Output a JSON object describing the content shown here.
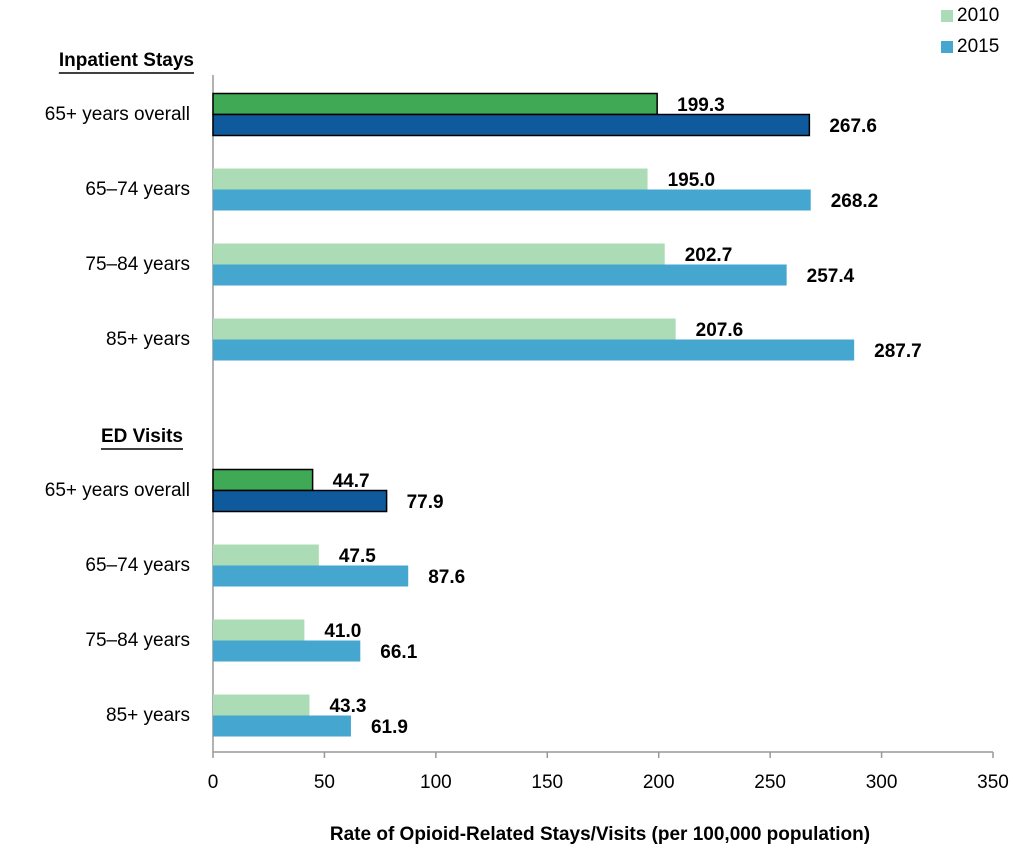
{
  "chart_data": {
    "type": "bar",
    "orientation": "horizontal",
    "x_label": "Rate of Opioid-Related Stays/Visits  (per 100,000  population)",
    "xlim": [
      0,
      350
    ],
    "xticks": [
      0,
      50,
      100,
      150,
      200,
      250,
      300,
      350
    ],
    "legend": "upper right",
    "series": [
      {
        "name": "2010",
        "color": "#acdcb6"
      },
      {
        "name": "2015",
        "color": "#45a6cf"
      }
    ],
    "groups": [
      {
        "title": "Inpatient Stays",
        "categories": [
          "65+ years overall",
          "65–74 years",
          "75–84 years",
          "85+ years"
        ],
        "series": [
          {
            "values": [
              199.3,
              195.0,
              202.7,
              207.6
            ],
            "value_labels": [
              "199.3",
              "195.0",
              "202.7",
              "207.6"
            ],
            "colors": [
              "#3fa955",
              "#acdcb6",
              "#acdcb6",
              "#acdcb6"
            ]
          },
          {
            "values": [
              267.6,
              268.2,
              257.4,
              287.7
            ],
            "value_labels": [
              "267.6",
              "268.2",
              "257.4",
              "287.7"
            ],
            "colors": [
              "#0f5a9c",
              "#45a6cf",
              "#45a6cf",
              "#45a6cf"
            ]
          }
        ]
      },
      {
        "title": "ED Visits",
        "categories": [
          "65+ years overall",
          "65–74 years",
          "75–84 years",
          "85+ years"
        ],
        "series": [
          {
            "values": [
              44.7,
              47.5,
              41.0,
              43.3
            ],
            "value_labels": [
              "44.7",
              "47.5",
              "41.0",
              "43.3"
            ],
            "colors": [
              "#3fa955",
              "#acdcb6",
              "#acdcb6",
              "#acdcb6"
            ]
          },
          {
            "values": [
              77.9,
              87.6,
              66.1,
              61.9
            ],
            "value_labels": [
              "77.9",
              "87.6",
              "66.1",
              "61.9"
            ],
            "colors": [
              "#0f5a9c",
              "#45a6cf",
              "#45a6cf",
              "#45a6cf"
            ]
          }
        ]
      }
    ]
  }
}
